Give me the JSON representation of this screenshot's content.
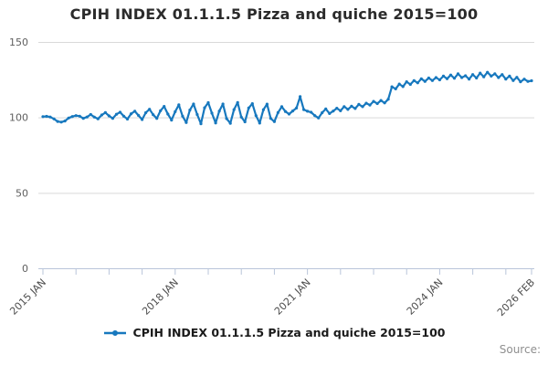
{
  "chart": {
    "title": "CPIH INDEX 01.1.1.5 Pizza and quiche 2015=100",
    "source_label": "Source:"
  },
  "legend": {
    "items": [
      {
        "label": "CPIH INDEX 01.1.1.5 Pizza and quiche 2015=100",
        "color": "#1778be"
      }
    ]
  },
  "chart_data": {
    "type": "line",
    "title": "CPIH INDEX 01.1.1.5 Pizza and quiche 2015=100",
    "x_start": "2015 JAN",
    "x_end": "2026 FEB",
    "frequency": "monthly",
    "ylim": [
      0,
      150
    ],
    "y_ticks": [
      0,
      50,
      100,
      150
    ],
    "x_ticks": [
      {
        "label": "2015 JAN",
        "month_index": 0
      },
      {
        "label": "2018 JAN",
        "month_index": 36
      },
      {
        "label": "2021 JAN",
        "month_index": 72
      },
      {
        "label": "2024 JAN",
        "month_index": 108
      },
      {
        "label": "2026 FEB",
        "month_index": 133
      }
    ],
    "minor_tick_every_months": 9,
    "grid": "horizontal",
    "legend_position": "bottom",
    "line_color": "#1778be",
    "grid_color": "#d9d9d9",
    "axis_color": "#b9c5da",
    "series": [
      {
        "name": "CPIH INDEX 01.1.1.5 Pizza and quiche 2015=100",
        "values": [
          100.5,
          100.7,
          100.3,
          99.0,
          97.3,
          96.9,
          97.6,
          99.6,
          100.6,
          101.2,
          100.8,
          99.4,
          100.3,
          101.9,
          100.2,
          99.1,
          101.6,
          103.2,
          101.0,
          99.4,
          102.1,
          103.4,
          100.8,
          98.9,
          102.4,
          104.1,
          101.3,
          98.6,
          103.1,
          105.4,
          101.8,
          99.3,
          104.4,
          107.3,
          102.2,
          98.2,
          103.8,
          108.3,
          100.8,
          96.6,
          104.9,
          108.9,
          101.9,
          95.8,
          106.4,
          109.8,
          102.8,
          96.3,
          104.2,
          108.9,
          99.2,
          96.1,
          105.2,
          109.9,
          100.2,
          97.1,
          106.3,
          109.1,
          101.2,
          96.2,
          105.1,
          108.8,
          99.3,
          97.2,
          103.2,
          107.1,
          103.9,
          102.2,
          104.3,
          106.2,
          113.8,
          105.2,
          104.1,
          103.4,
          101.2,
          99.6,
          103.1,
          105.6,
          102.6,
          104.2,
          106.1,
          104.4,
          107.2,
          105.3,
          107.4,
          105.9,
          108.6,
          107.1,
          109.4,
          108.2,
          110.6,
          109.2,
          111.2,
          109.6,
          112.1,
          120.3,
          118.9,
          122.1,
          120.4,
          123.6,
          121.9,
          124.4,
          122.9,
          125.6,
          123.9,
          126.1,
          124.4,
          126.4,
          124.9,
          127.4,
          125.6,
          128.1,
          125.9,
          128.9,
          126.4,
          127.6,
          125.4,
          128.4,
          126.1,
          129.4,
          126.9,
          129.9,
          127.4,
          128.9,
          126.4,
          128.4,
          125.4,
          127.4,
          124.4,
          126.6,
          123.6,
          125.4,
          123.9,
          124.3
        ]
      }
    ]
  }
}
